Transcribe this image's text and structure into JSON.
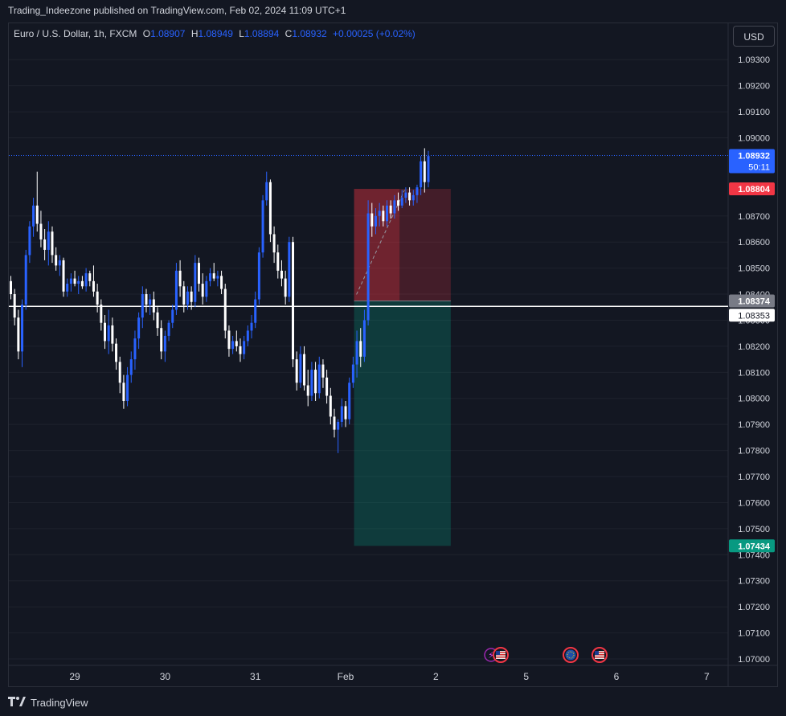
{
  "header": {
    "published": "Trading_Indeezone published on TradingView.com, Feb 02, 2024 11:09 UTC+1"
  },
  "legend": {
    "symbol": "Euro / U.S. Dollar, 1h, FXCM",
    "o_label": "O",
    "o_value": "1.08907",
    "h_label": "H",
    "h_value": "1.08949",
    "l_label": "L",
    "l_value": "1.08894",
    "c_label": "C",
    "c_value": "1.08932",
    "change": "+0.00025 (+0.02%)"
  },
  "currency_button": "USD",
  "footer": {
    "brand": "TradingView"
  },
  "colors": {
    "bg": "#131722",
    "up": "#2962ff",
    "down": "#ffffff",
    "stop": "#f23645",
    "target": "#089981",
    "grid": "#1e222d"
  },
  "chart_data": {
    "type": "candlestick",
    "ylim": [
      1.0697,
      1.0938
    ],
    "y_ticks": [
      "1.09300",
      "1.09200",
      "1.09100",
      "1.09000",
      "1.08700",
      "1.08600",
      "1.08500",
      "1.08400",
      "1.08300",
      "1.08200",
      "1.08100",
      "1.08000",
      "1.07900",
      "1.07800",
      "1.07700",
      "1.07600",
      "1.07500",
      "1.07400",
      "1.07300",
      "1.07200",
      "1.07100",
      "1.07000"
    ],
    "x_ticks": [
      {
        "label": "29",
        "index": 17
      },
      {
        "label": "30",
        "index": 41
      },
      {
        "label": "31",
        "index": 65
      },
      {
        "label": "Feb",
        "index": 89
      },
      {
        "label": "2",
        "index": 113
      },
      {
        "label": "5",
        "index": 137
      },
      {
        "label": "6",
        "index": 161
      },
      {
        "label": "7",
        "index": 185
      }
    ],
    "candles": [
      [
        1.0845,
        1.0847,
        1.0838,
        1.084
      ],
      [
        1.084,
        1.0842,
        1.0828,
        1.0831
      ],
      [
        1.0831,
        1.0834,
        1.0815,
        1.0818
      ],
      [
        1.0818,
        1.0838,
        1.0812,
        1.0836
      ],
      [
        1.0836,
        1.0857,
        1.0834,
        1.0855
      ],
      [
        1.0855,
        1.0868,
        1.0852,
        1.0866
      ],
      [
        1.0866,
        1.0877,
        1.0862,
        1.0874
      ],
      [
        1.0874,
        1.0887,
        1.0864,
        1.0867
      ],
      [
        1.0867,
        1.0872,
        1.0858,
        1.0861
      ],
      [
        1.0861,
        1.0865,
        1.0853,
        1.0857
      ],
      [
        1.0857,
        1.0868,
        1.0851,
        1.0864
      ],
      [
        1.0864,
        1.0866,
        1.0852,
        1.0855
      ],
      [
        1.0855,
        1.0858,
        1.0849,
        1.0851
      ],
      [
        1.0851,
        1.0855,
        1.0847,
        1.0853
      ],
      [
        1.0853,
        1.0854,
        1.0839,
        1.0841
      ],
      [
        1.0841,
        1.0846,
        1.0839,
        1.0844
      ],
      [
        1.0844,
        1.0848,
        1.0841,
        1.0846
      ],
      [
        1.0846,
        1.0849,
        1.0843,
        1.0844
      ],
      [
        1.0844,
        1.0847,
        1.084,
        1.0845
      ],
      [
        1.0845,
        1.0847,
        1.0842,
        1.0843
      ],
      [
        1.0843,
        1.085,
        1.0841,
        1.0848
      ],
      [
        1.0848,
        1.0849,
        1.0843,
        1.0845
      ],
      [
        1.0845,
        1.0851,
        1.0839,
        1.0841
      ],
      [
        1.0841,
        1.0844,
        1.0833,
        1.0836
      ],
      [
        1.0836,
        1.0838,
        1.0826,
        1.0829
      ],
      [
        1.0829,
        1.0832,
        1.0819,
        1.0822
      ],
      [
        1.0822,
        1.0834,
        1.0817,
        1.0828
      ],
      [
        1.0828,
        1.0831,
        1.0818,
        1.0821
      ],
      [
        1.0821,
        1.0823,
        1.0811,
        1.0814
      ],
      [
        1.0814,
        1.0816,
        1.0802,
        1.0806
      ],
      [
        1.0806,
        1.0809,
        1.0796,
        1.0799
      ],
      [
        1.0799,
        1.0812,
        1.0797,
        1.0809
      ],
      [
        1.0809,
        1.0818,
        1.0806,
        1.0815
      ],
      [
        1.0815,
        1.0826,
        1.0811,
        1.0823
      ],
      [
        1.0823,
        1.0833,
        1.0819,
        1.0831
      ],
      [
        1.0831,
        1.0843,
        1.0827,
        1.084
      ],
      [
        1.084,
        1.0842,
        1.0833,
        1.0836
      ],
      [
        1.0836,
        1.084,
        1.0832,
        1.0838
      ],
      [
        1.0838,
        1.0841,
        1.083,
        1.0833
      ],
      [
        1.0833,
        1.0835,
        1.0824,
        1.0827
      ],
      [
        1.0827,
        1.083,
        1.0815,
        1.0818
      ],
      [
        1.0818,
        1.0826,
        1.0814,
        1.0824
      ],
      [
        1.0824,
        1.083,
        1.0822,
        1.0829
      ],
      [
        1.0829,
        1.0836,
        1.0827,
        1.0834
      ],
      [
        1.0834,
        1.0852,
        1.0832,
        1.0849
      ],
      [
        1.0849,
        1.0853,
        1.0839,
        1.0843
      ],
      [
        1.0843,
        1.0845,
        1.0833,
        1.0836
      ],
      [
        1.0836,
        1.0843,
        1.0834,
        1.0841
      ],
      [
        1.0841,
        1.0843,
        1.0834,
        1.0837
      ],
      [
        1.0837,
        1.0855,
        1.0835,
        1.0852
      ],
      [
        1.0852,
        1.0854,
        1.0841,
        1.0844
      ],
      [
        1.0844,
        1.0848,
        1.0836,
        1.0839
      ],
      [
        1.0839,
        1.0847,
        1.0837,
        1.0845
      ],
      [
        1.0845,
        1.085,
        1.0843,
        1.0848
      ],
      [
        1.0848,
        1.0852,
        1.0845,
        1.0846
      ],
      [
        1.0846,
        1.0849,
        1.0843,
        1.0847
      ],
      [
        1.0847,
        1.0849,
        1.084,
        1.0842
      ],
      [
        1.0842,
        1.0844,
        1.0823,
        1.0826
      ],
      [
        1.0826,
        1.0828,
        1.0816,
        1.0819
      ],
      [
        1.0819,
        1.0824,
        1.0817,
        1.0822
      ],
      [
        1.0822,
        1.0826,
        1.0818,
        1.082
      ],
      [
        1.082,
        1.0823,
        1.0814,
        1.0817
      ],
      [
        1.0817,
        1.0824,
        1.0815,
        1.0822
      ],
      [
        1.0822,
        1.0828,
        1.082,
        1.0826
      ],
      [
        1.0826,
        1.0832,
        1.0823,
        1.0829
      ],
      [
        1.0829,
        1.0841,
        1.0827,
        1.0838
      ],
      [
        1.0838,
        1.0858,
        1.0836,
        1.0856
      ],
      [
        1.0856,
        1.0878,
        1.0854,
        1.0876
      ],
      [
        1.0876,
        1.0887,
        1.0874,
        1.0883
      ],
      [
        1.0883,
        1.0884,
        1.086,
        1.0863
      ],
      [
        1.0863,
        1.0866,
        1.0852,
        1.0856
      ],
      [
        1.0856,
        1.0859,
        1.0846,
        1.0849
      ],
      [
        1.0849,
        1.0853,
        1.0843,
        1.0846
      ],
      [
        1.0846,
        1.0849,
        1.0836,
        1.0839
      ],
      [
        1.0839,
        1.0862,
        1.0837,
        1.086
      ],
      [
        1.086,
        1.0862,
        1.0812,
        1.0815
      ],
      [
        1.0815,
        1.0818,
        1.0803,
        1.0806
      ],
      [
        1.0806,
        1.082,
        1.0804,
        1.0817
      ],
      [
        1.0817,
        1.082,
        1.0803,
        1.0805
      ],
      [
        1.0805,
        1.0811,
        1.0797,
        1.0801
      ],
      [
        1.0801,
        1.0814,
        1.0799,
        1.0811
      ],
      [
        1.0811,
        1.0814,
        1.0799,
        1.0802
      ],
      [
        1.0802,
        1.0816,
        1.08,
        1.0813
      ],
      [
        1.0813,
        1.0815,
        1.0804,
        1.0808
      ],
      [
        1.0808,
        1.0811,
        1.0798,
        1.0801
      ],
      [
        1.0801,
        1.0804,
        1.079,
        1.0793
      ],
      [
        1.0793,
        1.0796,
        1.0785,
        1.0788
      ],
      [
        1.0788,
        1.0792,
        1.0779,
        1.0791
      ],
      [
        1.0791,
        1.08,
        1.0789,
        1.0797
      ],
      [
        1.0797,
        1.0799,
        1.0789,
        1.0792
      ],
      [
        1.0792,
        1.0808,
        1.079,
        1.0806
      ],
      [
        1.0806,
        1.0816,
        1.0804,
        1.0813
      ],
      [
        1.0813,
        1.0826,
        1.0808,
        1.0822
      ],
      [
        1.0822,
        1.0827,
        1.0812,
        1.0816
      ],
      [
        1.0816,
        1.0834,
        1.0814,
        1.083
      ],
      [
        1.083,
        1.0876,
        1.0828,
        1.0871
      ],
      [
        1.0871,
        1.0875,
        1.0862,
        1.0866
      ],
      [
        1.0866,
        1.0873,
        1.0863,
        1.087
      ],
      [
        1.087,
        1.0875,
        1.0866,
        1.0872
      ],
      [
        1.0872,
        1.0874,
        1.0866,
        1.0868
      ],
      [
        1.0868,
        1.0876,
        1.0866,
        1.0874
      ],
      [
        1.0874,
        1.0876,
        1.0869,
        1.0871
      ],
      [
        1.0871,
        1.0878,
        1.0869,
        1.0876
      ],
      [
        1.0876,
        1.0879,
        1.0872,
        1.0874
      ],
      [
        1.0874,
        1.088,
        1.0873,
        1.0877
      ],
      [
        1.0877,
        1.0881,
        1.0875,
        1.0879
      ],
      [
        1.0879,
        1.0881,
        1.0874,
        1.0876
      ],
      [
        1.0876,
        1.088,
        1.0874,
        1.0878
      ],
      [
        1.0878,
        1.0882,
        1.0875,
        1.0881
      ],
      [
        1.0881,
        1.0893,
        1.0878,
        1.0891
      ],
      [
        1.0891,
        1.0896,
        1.0879,
        1.0883
      ],
      [
        1.0883,
        1.0895,
        1.0881,
        1.0893
      ]
    ],
    "horizontal_line": 1.08353,
    "last_price": 1.08932,
    "countdown": "50:11",
    "position": {
      "start_index": 92,
      "end_index": 116,
      "entry": 1.08374,
      "stop": 1.08804,
      "target": 1.07434,
      "entry_label": "1.08374",
      "stop_label": "1.08804",
      "target_label": "1.07434"
    },
    "line_label": "1.08353",
    "last_label": "1.08932"
  }
}
